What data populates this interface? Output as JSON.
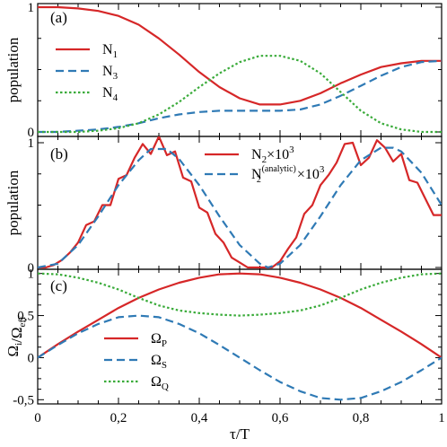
{
  "figure": {
    "xlabel": "τ/T",
    "xticks": [
      "0",
      "0,2",
      "0,4",
      "0,6",
      "0,8",
      "1"
    ]
  },
  "colors": {
    "red": "#d62728",
    "blue": "#2f7ab5",
    "green": "#3aab3a"
  },
  "chart_data": [
    {
      "type": "line",
      "panel_label": "(a)",
      "ylabel": "population",
      "xlim": [
        0,
        1
      ],
      "ylim": [
        0,
        1
      ],
      "yticks": [
        "0",
        "1"
      ],
      "legend_position": "left",
      "series": [
        {
          "name": "N",
          "sub": "1",
          "sup": "",
          "suffix": "",
          "color": "red",
          "style": "solid",
          "x": [
            0,
            0.05,
            0.1,
            0.15,
            0.2,
            0.25,
            0.3,
            0.35,
            0.4,
            0.45,
            0.5,
            0.55,
            0.6,
            0.65,
            0.7,
            0.75,
            0.8,
            0.85,
            0.9,
            0.95,
            1
          ],
          "y": [
            1.0,
            1.0,
            0.99,
            0.97,
            0.93,
            0.86,
            0.75,
            0.62,
            0.48,
            0.36,
            0.27,
            0.22,
            0.22,
            0.25,
            0.31,
            0.39,
            0.46,
            0.52,
            0.55,
            0.57,
            0.57
          ]
        },
        {
          "name": "N",
          "sub": "3",
          "sup": "",
          "suffix": "",
          "color": "blue",
          "style": "dashed",
          "x": [
            0,
            0.05,
            0.1,
            0.15,
            0.2,
            0.25,
            0.3,
            0.35,
            0.4,
            0.45,
            0.5,
            0.55,
            0.6,
            0.65,
            0.7,
            0.75,
            0.8,
            0.85,
            0.9,
            0.95,
            1
          ],
          "y": [
            0,
            0.0,
            0.01,
            0.02,
            0.04,
            0.07,
            0.11,
            0.14,
            0.16,
            0.17,
            0.17,
            0.17,
            0.17,
            0.18,
            0.22,
            0.29,
            0.37,
            0.45,
            0.52,
            0.56,
            0.57
          ]
        },
        {
          "name": "N",
          "sub": "4",
          "sup": "",
          "suffix": "",
          "color": "green",
          "style": "dotted",
          "x": [
            0,
            0.05,
            0.1,
            0.15,
            0.2,
            0.25,
            0.3,
            0.35,
            0.4,
            0.45,
            0.5,
            0.55,
            0.6,
            0.65,
            0.7,
            0.75,
            0.8,
            0.85,
            0.9,
            0.95,
            1
          ],
          "y": [
            0,
            0.0,
            0.0,
            0.01,
            0.03,
            0.07,
            0.14,
            0.24,
            0.36,
            0.47,
            0.56,
            0.61,
            0.61,
            0.57,
            0.47,
            0.32,
            0.17,
            0.07,
            0.02,
            0.0,
            0.0
          ]
        }
      ]
    },
    {
      "type": "line",
      "panel_label": "(b)",
      "ylabel": "population",
      "xlim": [
        0,
        1
      ],
      "ylim": [
        0,
        1
      ],
      "yticks": [
        "0",
        "1"
      ],
      "legend_position": "top-right",
      "series": [
        {
          "name": "N",
          "sub": "2",
          "sup": "",
          "suffix": "×10",
          "suffix_sup": "3",
          "color": "red",
          "style": "solid",
          "x": [
            0,
            0.02,
            0.04,
            0.06,
            0.08,
            0.1,
            0.12,
            0.14,
            0.16,
            0.18,
            0.2,
            0.22,
            0.24,
            0.26,
            0.28,
            0.3,
            0.32,
            0.34,
            0.36,
            0.38,
            0.4,
            0.42,
            0.44,
            0.46,
            0.48,
            0.5,
            0.52,
            0.54,
            0.56,
            0.58,
            0.6,
            0.62,
            0.64,
            0.66,
            0.68,
            0.7,
            0.72,
            0.74,
            0.76,
            0.78,
            0.8,
            0.82,
            0.84,
            0.86,
            0.88,
            0.9,
            0.92,
            0.94,
            0.96,
            0.98,
            1
          ],
          "y": [
            0,
            0.0,
            0.02,
            0.06,
            0.12,
            0.2,
            0.34,
            0.37,
            0.5,
            0.5,
            0.71,
            0.74,
            0.88,
            0.99,
            0.91,
            1.05,
            0.9,
            0.93,
            0.72,
            0.69,
            0.48,
            0.44,
            0.27,
            0.2,
            0.08,
            0.04,
            0.0,
            0.0,
            0.0,
            0.0,
            0.05,
            0.15,
            0.24,
            0.43,
            0.5,
            0.66,
            0.74,
            0.84,
            0.99,
            1.0,
            0.82,
            0.88,
            1.02,
            0.96,
            0.85,
            0.91,
            0.7,
            0.68,
            0.55,
            0.42,
            0.42
          ]
        },
        {
          "name": "N",
          "sub": "2",
          "sup": "(analytic)",
          "suffix": "×10",
          "suffix_sup": "3",
          "color": "blue",
          "style": "dashed",
          "x": [
            0,
            0.05,
            0.1,
            0.15,
            0.2,
            0.25,
            0.28,
            0.32,
            0.35,
            0.4,
            0.45,
            0.5,
            0.55,
            0.57,
            0.6,
            0.65,
            0.7,
            0.75,
            0.8,
            0.85,
            0.88,
            0.9,
            0.95,
            1
          ],
          "y": [
            0,
            0.03,
            0.18,
            0.41,
            0.66,
            0.86,
            0.95,
            0.95,
            0.87,
            0.66,
            0.41,
            0.18,
            0.03,
            0.0,
            0.03,
            0.18,
            0.41,
            0.66,
            0.86,
            0.96,
            0.96,
            0.93,
            0.76,
            0.5
          ]
        }
      ]
    },
    {
      "type": "line",
      "panel_label": "(c)",
      "ylabel": "Ω_i/Ω_eff",
      "xlim": [
        0,
        1
      ],
      "ylim": [
        -0.55,
        1.05
      ],
      "yticks": [
        "-0,5",
        "0",
        "0,5",
        "1"
      ],
      "legend_position": "bottom-left",
      "series": [
        {
          "name": "Ω",
          "sub": "P",
          "sup": "",
          "suffix": "",
          "color": "red",
          "style": "solid",
          "x": [
            0,
            0.05,
            0.1,
            0.15,
            0.2,
            0.25,
            0.3,
            0.35,
            0.4,
            0.45,
            0.5,
            0.55,
            0.6,
            0.65,
            0.7,
            0.75,
            0.8,
            0.85,
            0.9,
            0.95,
            1
          ],
          "y": [
            0,
            0.16,
            0.31,
            0.45,
            0.59,
            0.71,
            0.81,
            0.89,
            0.95,
            0.99,
            1.0,
            0.99,
            0.95,
            0.89,
            0.81,
            0.71,
            0.59,
            0.45,
            0.31,
            0.16,
            0
          ]
        },
        {
          "name": "Ω",
          "sub": "S",
          "sup": "",
          "suffix": "",
          "color": "blue",
          "style": "dashed",
          "x": [
            0,
            0.05,
            0.1,
            0.15,
            0.2,
            0.25,
            0.3,
            0.35,
            0.4,
            0.45,
            0.5,
            0.55,
            0.6,
            0.65,
            0.7,
            0.75,
            0.8,
            0.85,
            0.9,
            0.95,
            1
          ],
          "y": [
            0,
            0.15,
            0.29,
            0.4,
            0.48,
            0.5,
            0.48,
            0.4,
            0.29,
            0.15,
            0.0,
            -0.15,
            -0.29,
            -0.4,
            -0.48,
            -0.5,
            -0.48,
            -0.4,
            -0.29,
            -0.15,
            0
          ]
        },
        {
          "name": "Ω",
          "sub": "Q",
          "sup": "",
          "suffix": "",
          "color": "green",
          "style": "dotted",
          "x": [
            0,
            0.05,
            0.1,
            0.15,
            0.2,
            0.25,
            0.3,
            0.35,
            0.4,
            0.45,
            0.5,
            0.55,
            0.6,
            0.65,
            0.7,
            0.75,
            0.8,
            0.85,
            0.9,
            0.95,
            1
          ],
          "y": [
            1.0,
            0.99,
            0.95,
            0.89,
            0.81,
            0.71,
            0.62,
            0.56,
            0.53,
            0.51,
            0.5,
            0.51,
            0.53,
            0.56,
            0.62,
            0.71,
            0.81,
            0.89,
            0.95,
            0.99,
            1.0
          ]
        }
      ]
    }
  ]
}
